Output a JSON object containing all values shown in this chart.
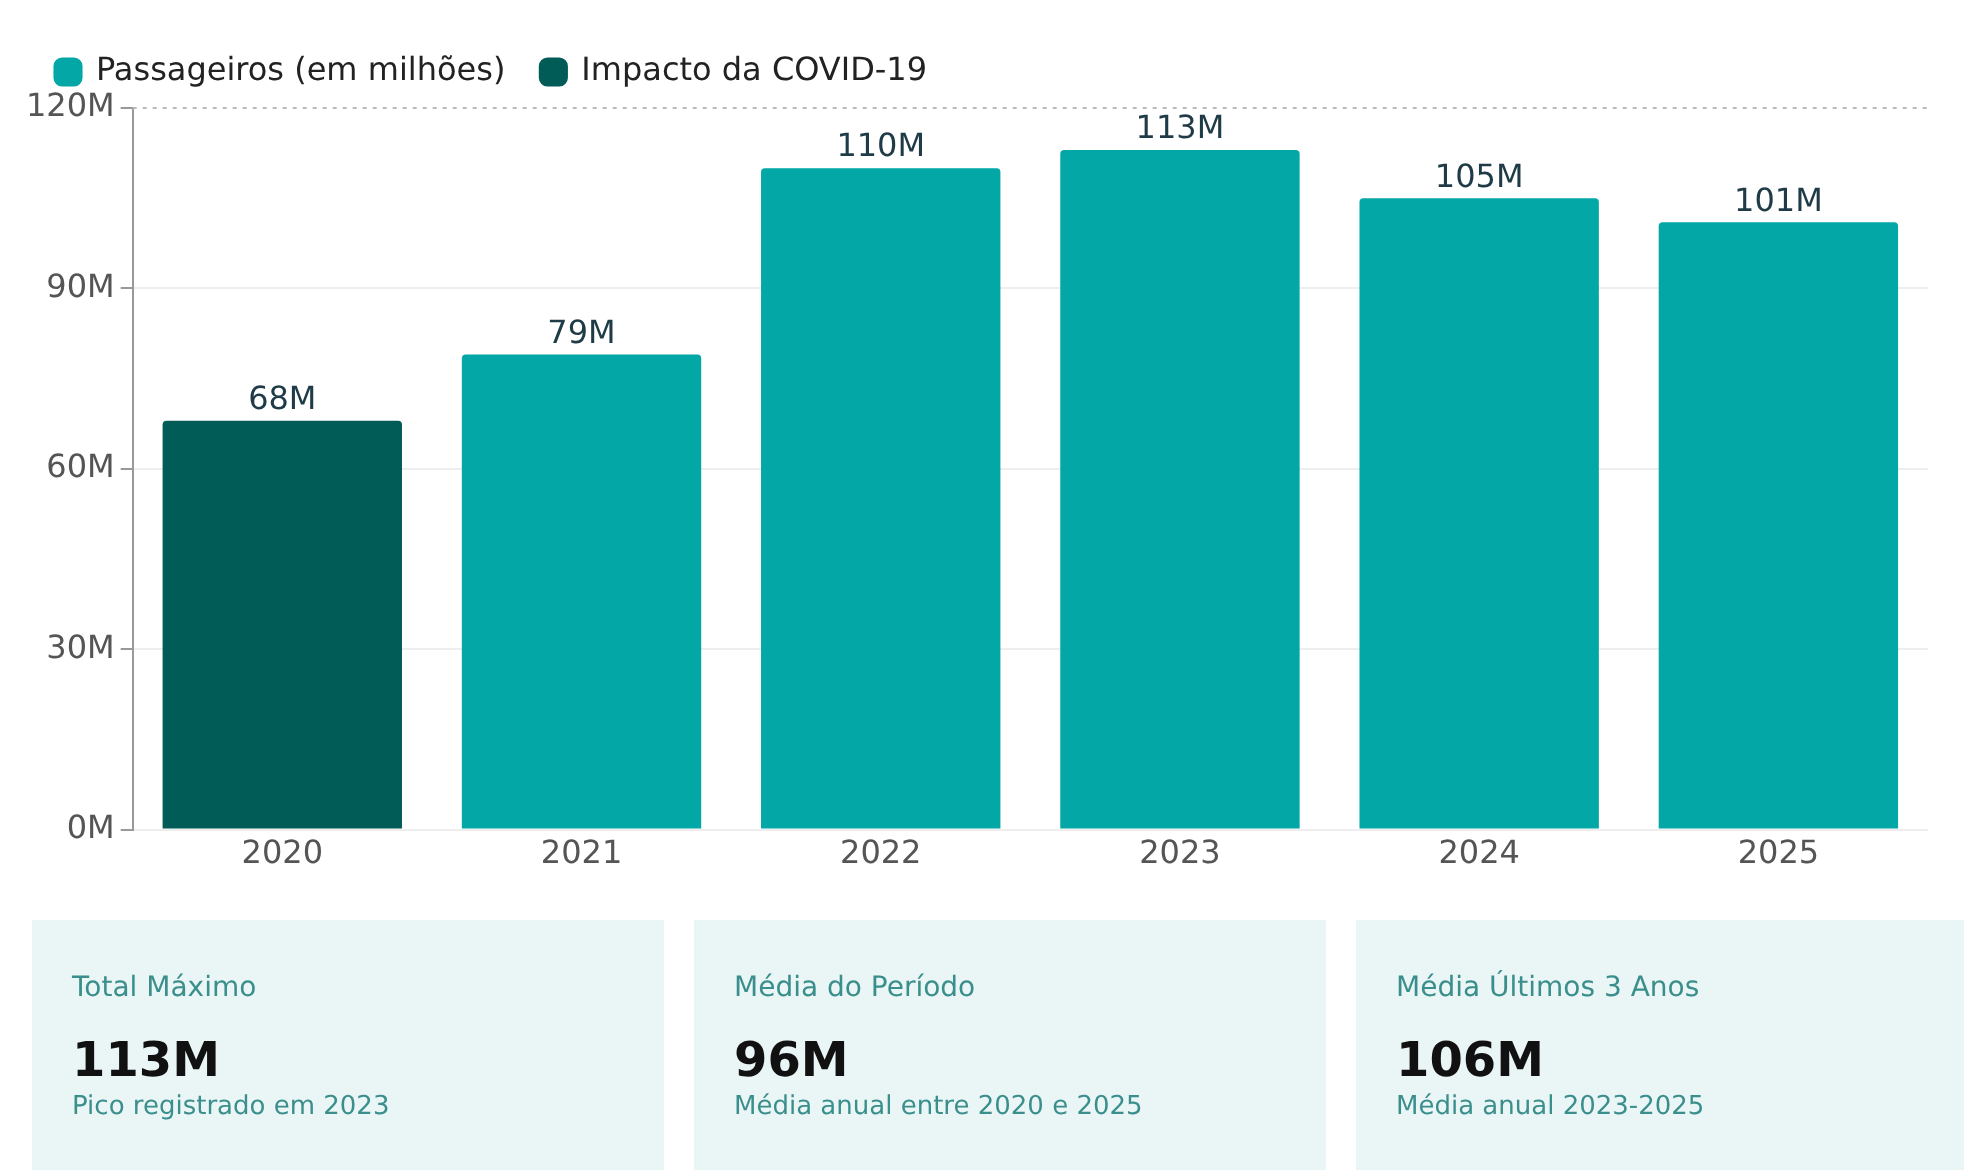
{
  "chart_data": [
    {
      "type": "bar",
      "stacked": true,
      "categories": [
        "2020",
        "2021",
        "2022",
        "2023",
        "2024",
        "2025"
      ],
      "series": [
        {
          "name": "Passageiros (em milhões)",
          "color": "#02a7a6",
          "values": [
            null,
            79,
            110,
            113,
            105,
            101
          ],
          "value_labels": [
            null,
            "79M",
            "110M",
            "113M",
            "105M",
            "101M"
          ]
        },
        {
          "name": "Impacto da COVID-19",
          "color": "#015c58",
          "values": [
            68,
            null,
            null,
            null,
            null,
            null
          ],
          "value_labels": [
            "68M",
            null,
            null,
            null,
            null,
            null
          ]
        }
      ],
      "ylim": [
        0,
        120
      ],
      "yticks": [
        {
          "value": 0,
          "label": "0M"
        },
        {
          "value": 30,
          "label": "30M"
        },
        {
          "value": 60,
          "label": "60M"
        },
        {
          "value": 90,
          "label": "90M"
        },
        {
          "value": 120,
          "label": "120M"
        }
      ],
      "grid": "y",
      "legend": "top left"
    },
    {
      "type": "other",
      "title": "Total Máximo",
      "annotations": [
        "113M",
        "Pico registrado em 2023"
      ]
    },
    {
      "type": "other",
      "title": "Média do Período",
      "annotations": [
        "96M",
        "Média anual entre 2020 e 2025"
      ]
    },
    {
      "type": "other",
      "title": "Média Últimos 3 Anos",
      "annotations": [
        "106M",
        "Média anual 2023-2025"
      ]
    }
  ]
}
